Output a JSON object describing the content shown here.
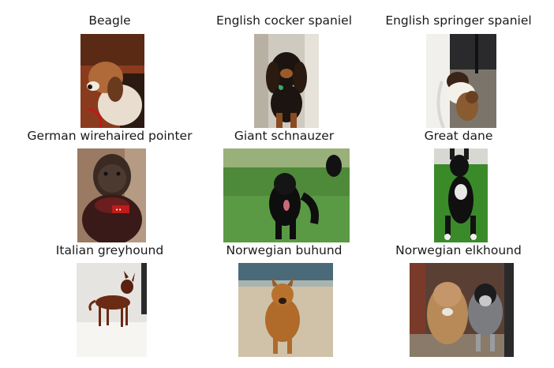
{
  "panels": [
    {
      "title": "Beagle"
    },
    {
      "title": "English cocker spaniel"
    },
    {
      "title": "English springer spaniel"
    },
    {
      "title": "German wirehaired pointer"
    },
    {
      "title": "Giant schnauzer"
    },
    {
      "title": "Great dane"
    },
    {
      "title": "Italian greyhound"
    },
    {
      "title": "Norwegian buhund"
    },
    {
      "title": "Norwegian elkhound"
    }
  ]
}
